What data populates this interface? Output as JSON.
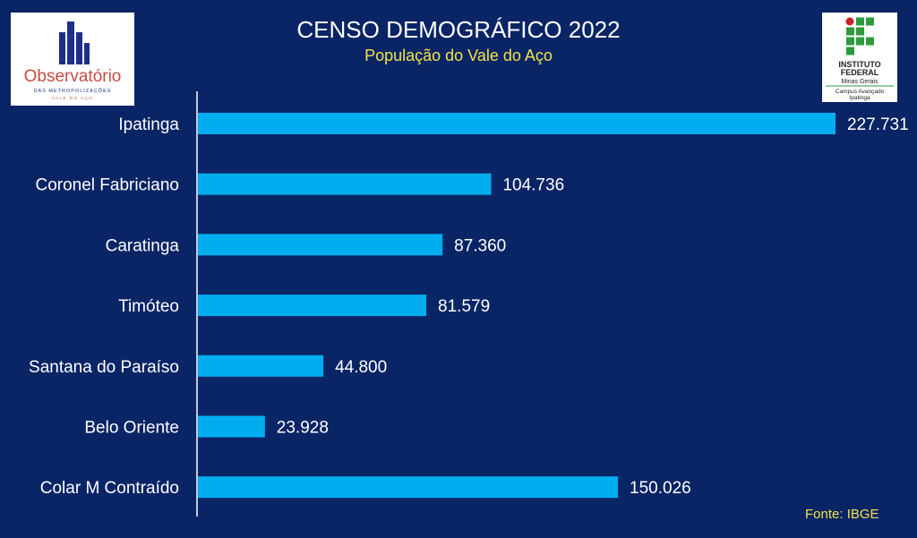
{
  "chart_data": {
    "type": "bar",
    "orientation": "horizontal",
    "title": "CENSO DEMOGRÁFICO 2022",
    "subtitle": "População do Vale do Aço",
    "categories": [
      "Ipatinga",
      "Coronel Fabriciano",
      "Caratinga",
      "Timóteo",
      "Santana do Paraíso",
      "Belo Oriente",
      "Colar M Contraído"
    ],
    "values": [
      227731,
      104736,
      87360,
      81579,
      44800,
      23928,
      150026
    ],
    "value_labels": [
      "227.731",
      "104.736",
      "87.360",
      "81.579",
      "44.800",
      "23.928",
      "150.026"
    ],
    "xlim": [
      0,
      227731
    ],
    "grid": false,
    "legend": "none"
  },
  "source": "Fonte: IBGE",
  "logos": {
    "left": {
      "name": "Observatório",
      "line2": "DAS METROPOLIZAÇÕES",
      "line3": "VALE DO AÇO"
    },
    "right": {
      "line1": "INSTITUTO",
      "line2": "FEDERAL",
      "line3": "Minas Gerais",
      "line4": "Campus Avançado",
      "line5": "Ipatinga"
    }
  },
  "colors": {
    "background": "#0a2566",
    "bar": "#00aeef",
    "title": "#ffffff",
    "subtitle": "#f2e24a",
    "axis": "#ffffff"
  }
}
